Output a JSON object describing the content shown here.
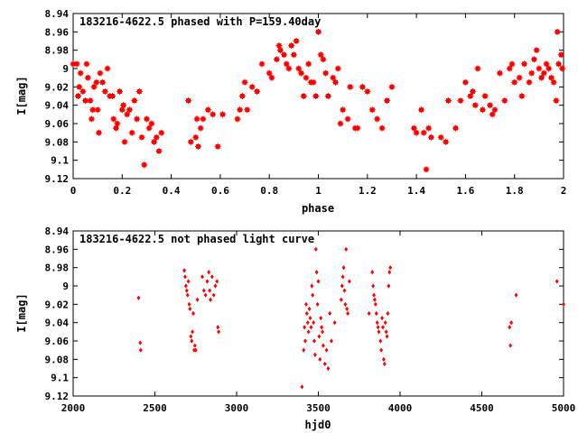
{
  "chart_data": [
    {
      "type": "scatter",
      "title": "183216-4622.5 phased with P=159.40day",
      "xlabel": "phase",
      "ylabel": "I[mag]",
      "xlim": [
        0,
        2
      ],
      "ylim": [
        9.12,
        8.94
      ],
      "y_inverted": true,
      "x_ticks": [
        "0",
        "0.2",
        "0.4",
        "0.6",
        "0.8",
        "1",
        "1.2",
        "1.4",
        "1.6",
        "1.8",
        "2"
      ],
      "y_ticks": [
        "8.94",
        "8.96",
        "8.98",
        "9",
        "9.02",
        "9.04",
        "9.06",
        "9.08",
        "9.1",
        "9.12"
      ],
      "grid": false,
      "color": "#ff0000",
      "marker": "filled-square-star",
      "points": [
        [
          0.0,
          8.995
        ],
        [
          0.015,
          8.995
        ],
        [
          0.02,
          9.03
        ],
        [
          0.025,
          9.02
        ],
        [
          0.03,
          9.005
        ],
        [
          0.04,
          9.025
        ],
        [
          0.05,
          9.035
        ],
        [
          0.055,
          8.995
        ],
        [
          0.06,
          9.01
        ],
        [
          0.07,
          9.035
        ],
        [
          0.075,
          9.055
        ],
        [
          0.08,
          9.045
        ],
        [
          0.085,
          9.02
        ],
        [
          0.095,
          9.015
        ],
        [
          0.1,
          9.045
        ],
        [
          0.105,
          9.07
        ],
        [
          0.11,
          9.005
        ],
        [
          0.12,
          9.015
        ],
        [
          0.13,
          9.025
        ],
        [
          0.14,
          9.0
        ],
        [
          0.15,
          9.03
        ],
        [
          0.16,
          9.03
        ],
        [
          0.165,
          9.055
        ],
        [
          0.175,
          9.065
        ],
        [
          0.18,
          9.06
        ],
        [
          0.19,
          9.025
        ],
        [
          0.2,
          9.045
        ],
        [
          0.205,
          9.04
        ],
        [
          0.21,
          9.08
        ],
        [
          0.22,
          9.05
        ],
        [
          0.23,
          9.045
        ],
        [
          0.24,
          9.07
        ],
        [
          0.25,
          9.035
        ],
        [
          0.26,
          9.055
        ],
        [
          0.27,
          9.025
        ],
        [
          0.28,
          9.075
        ],
        [
          0.29,
          9.105
        ],
        [
          0.3,
          9.055
        ],
        [
          0.31,
          9.065
        ],
        [
          0.32,
          9.06
        ],
        [
          0.33,
          9.08
        ],
        [
          0.34,
          9.075
        ],
        [
          0.35,
          9.09
        ],
        [
          0.36,
          9.07
        ],
        [
          0.47,
          9.035
        ],
        [
          0.48,
          9.08
        ],
        [
          0.5,
          9.075
        ],
        [
          0.505,
          9.055
        ],
        [
          0.51,
          9.085
        ],
        [
          0.52,
          9.065
        ],
        [
          0.53,
          9.055
        ],
        [
          0.55,
          9.045
        ],
        [
          0.57,
          9.05
        ],
        [
          0.59,
          9.085
        ],
        [
          0.61,
          9.05
        ],
        [
          0.67,
          9.055
        ],
        [
          0.68,
          9.045
        ],
        [
          0.69,
          9.03
        ],
        [
          0.7,
          9.015
        ],
        [
          0.71,
          9.045
        ],
        [
          0.73,
          9.02
        ],
        [
          0.75,
          9.025
        ],
        [
          0.77,
          8.995
        ],
        [
          0.8,
          9.005
        ],
        [
          0.81,
          9.01
        ],
        [
          0.83,
          8.99
        ],
        [
          0.84,
          8.975
        ],
        [
          0.845,
          8.98
        ],
        [
          0.86,
          8.985
        ],
        [
          0.87,
          8.995
        ],
        [
          0.88,
          9.0
        ],
        [
          0.89,
          8.975
        ],
        [
          0.9,
          8.985
        ],
        [
          0.91,
          8.97
        ],
        [
          0.92,
          9.0
        ],
        [
          0.93,
          9.005
        ],
        [
          0.94,
          9.03
        ],
        [
          0.95,
          9.01
        ],
        [
          0.96,
          8.995
        ],
        [
          0.97,
          9.015
        ],
        [
          0.98,
          9.015
        ],
        [
          0.99,
          9.03
        ],
        [
          1.0,
          8.96
        ],
        [
          1.01,
          8.985
        ],
        [
          1.02,
          8.99
        ],
        [
          1.03,
          9.005
        ],
        [
          1.04,
          9.03
        ],
        [
          1.06,
          9.01
        ],
        [
          1.07,
          9.015
        ],
        [
          1.08,
          9.0
        ],
        [
          1.09,
          9.06
        ],
        [
          1.1,
          9.045
        ],
        [
          1.12,
          9.055
        ],
        [
          1.13,
          9.02
        ],
        [
          1.15,
          9.065
        ],
        [
          1.16,
          9.065
        ],
        [
          1.18,
          9.02
        ],
        [
          1.2,
          9.025
        ],
        [
          1.22,
          9.045
        ],
        [
          1.24,
          9.055
        ],
        [
          1.26,
          9.065
        ],
        [
          1.28,
          9.035
        ],
        [
          1.3,
          9.02
        ],
        [
          1.39,
          9.065
        ],
        [
          1.4,
          9.07
        ],
        [
          1.42,
          9.045
        ],
        [
          1.43,
          9.07
        ],
        [
          1.44,
          9.11
        ],
        [
          1.45,
          9.065
        ],
        [
          1.46,
          9.075
        ],
        [
          1.5,
          9.075
        ],
        [
          1.52,
          9.08
        ],
        [
          1.53,
          9.035
        ],
        [
          1.56,
          9.065
        ],
        [
          1.58,
          9.035
        ],
        [
          1.6,
          9.015
        ],
        [
          1.62,
          9.03
        ],
        [
          1.63,
          9.025
        ],
        [
          1.64,
          9.04
        ],
        [
          1.65,
          9.0
        ],
        [
          1.67,
          9.045
        ],
        [
          1.68,
          9.03
        ],
        [
          1.7,
          9.04
        ],
        [
          1.71,
          9.05
        ],
        [
          1.72,
          9.045
        ],
        [
          1.74,
          9.005
        ],
        [
          1.76,
          9.035
        ],
        [
          1.78,
          9.0
        ],
        [
          1.79,
          8.995
        ],
        [
          1.8,
          9.015
        ],
        [
          1.82,
          9.01
        ],
        [
          1.83,
          9.03
        ],
        [
          1.84,
          8.995
        ],
        [
          1.86,
          9.015
        ],
        [
          1.87,
          9.005
        ],
        [
          1.88,
          8.99
        ],
        [
          1.89,
          8.98
        ],
        [
          1.9,
          9.0
        ],
        [
          1.91,
          9.01
        ],
        [
          1.92,
          9.005
        ],
        [
          1.93,
          8.995
        ],
        [
          1.94,
          9.0
        ],
        [
          1.95,
          9.01
        ],
        [
          1.96,
          9.015
        ],
        [
          1.97,
          9.035
        ],
        [
          1.975,
          8.96
        ],
        [
          1.98,
          8.995
        ],
        [
          1.99,
          8.985
        ],
        [
          1.995,
          9.0
        ]
      ]
    },
    {
      "type": "scatter",
      "title": "183216-4622.5 not phased light curve",
      "xlabel": "hjd0",
      "ylabel": "I[mag]",
      "xlim": [
        2000,
        5000
      ],
      "ylim": [
        9.12,
        8.94
      ],
      "y_inverted": true,
      "x_ticks": [
        "2000",
        "2500",
        "3000",
        "3500",
        "4000",
        "4500",
        "5000"
      ],
      "y_ticks": [
        "8.94",
        "8.96",
        "8.98",
        "9",
        "9.02",
        "9.04",
        "9.06",
        "9.08",
        "9.1",
        "9.12"
      ],
      "grid": false,
      "color": "#ff0000",
      "marker": "diamond",
      "points": [
        [
          2400,
          9.013
        ],
        [
          2410,
          9.062
        ],
        [
          2413,
          9.07
        ],
        [
          2680,
          8.983
        ],
        [
          2685,
          8.99
        ],
        [
          2690,
          9.0
        ],
        [
          2695,
          9.005
        ],
        [
          2700,
          9.01
        ],
        [
          2705,
          8.995
        ],
        [
          2710,
          9.02
        ],
        [
          2715,
          9.025
        ],
        [
          2720,
          9.055
        ],
        [
          2725,
          9.06
        ],
        [
          2730,
          9.05
        ],
        [
          2735,
          9.03
        ],
        [
          2740,
          9.07
        ],
        [
          2745,
          9.065
        ],
        [
          2750,
          9.07
        ],
        [
          2760,
          9.015
        ],
        [
          2790,
          8.99
        ],
        [
          2800,
          9.005
        ],
        [
          2810,
          9.01
        ],
        [
          2820,
          8.995
        ],
        [
          2830,
          8.985
        ],
        [
          2835,
          9.005
        ],
        [
          2840,
          9.015
        ],
        [
          2850,
          8.99
        ],
        [
          2860,
          9.01
        ],
        [
          2870,
          9.0
        ],
        [
          2880,
          8.995
        ],
        [
          2885,
          9.045
        ],
        [
          2890,
          9.05
        ],
        [
          3400,
          9.11
        ],
        [
          3410,
          9.07
        ],
        [
          3415,
          9.045
        ],
        [
          3420,
          9.06
        ],
        [
          3425,
          9.02
        ],
        [
          3430,
          9.03
        ],
        [
          3435,
          9.04
        ],
        [
          3440,
          9.05
        ],
        [
          3445,
          9.025
        ],
        [
          3450,
          9.035
        ],
        [
          3455,
          9.045
        ],
        [
          3460,
          9.0
        ],
        [
          3465,
          9.01
        ],
        [
          3470,
          9.04
        ],
        [
          3475,
          9.06
        ],
        [
          3480,
          9.075
        ],
        [
          3485,
          8.96
        ],
        [
          3490,
          8.985
        ],
        [
          3495,
          9.02
        ],
        [
          3500,
          8.995
        ],
        [
          3505,
          9.055
        ],
        [
          3510,
          9.08
        ],
        [
          3515,
          9.035
        ],
        [
          3520,
          9.045
        ],
        [
          3525,
          9.05
        ],
        [
          3530,
          9.065
        ],
        [
          3540,
          9.085
        ],
        [
          3550,
          9.07
        ],
        [
          3560,
          9.09
        ],
        [
          3570,
          9.03
        ],
        [
          3580,
          9.06
        ],
        [
          3600,
          9.04
        ],
        [
          3640,
          9.015
        ],
        [
          3645,
          9.0
        ],
        [
          3650,
          8.99
        ],
        [
          3655,
          8.98
        ],
        [
          3660,
          9.005
        ],
        [
          3665,
          9.02
        ],
        [
          3670,
          8.96
        ],
        [
          3675,
          9.025
        ],
        [
          3680,
          9.03
        ],
        [
          3690,
          8.995
        ],
        [
          3810,
          9.03
        ],
        [
          3830,
          8.985
        ],
        [
          3835,
          9.0
        ],
        [
          3840,
          9.01
        ],
        [
          3845,
          9.015
        ],
        [
          3850,
          9.02
        ],
        [
          3855,
          9.03
        ],
        [
          3860,
          9.04
        ],
        [
          3865,
          9.045
        ],
        [
          3870,
          9.05
        ],
        [
          3880,
          9.06
        ],
        [
          3885,
          9.07
        ],
        [
          3890,
          9.035
        ],
        [
          3895,
          9.045
        ],
        [
          3900,
          9.08
        ],
        [
          3905,
          9.085
        ],
        [
          3910,
          9.04
        ],
        [
          3915,
          9.05
        ],
        [
          3920,
          9.055
        ],
        [
          3925,
          9.03
        ],
        [
          3930,
          9.0
        ],
        [
          3935,
          8.985
        ],
        [
          3940,
          8.98
        ],
        [
          4670,
          9.045
        ],
        [
          4675,
          9.065
        ],
        [
          4680,
          9.04
        ],
        [
          4710,
          9.01
        ],
        [
          4960,
          8.995
        ],
        [
          5000,
          9.02
        ]
      ]
    }
  ]
}
